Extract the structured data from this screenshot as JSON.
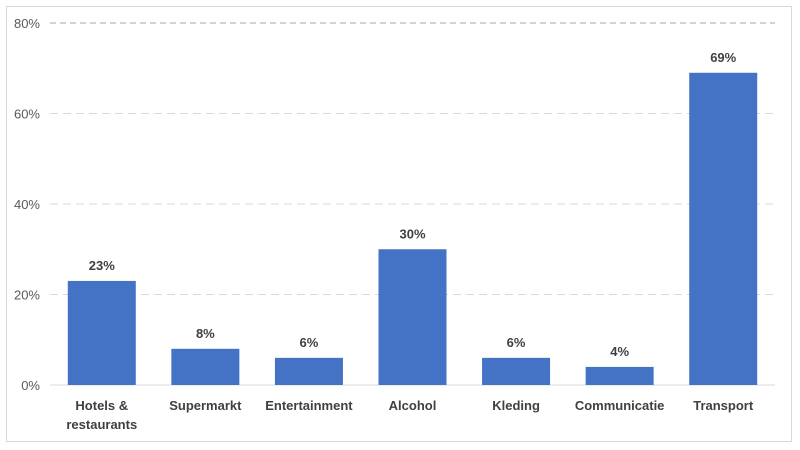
{
  "chart_data": {
    "type": "bar",
    "categories": [
      [
        "Hotels &",
        "restaurants"
      ],
      [
        "Supermarkt"
      ],
      [
        "Entertainment"
      ],
      [
        "Alcohol"
      ],
      [
        "Kleding"
      ],
      [
        "Communicatie"
      ],
      [
        "Transport"
      ]
    ],
    "values": [
      23,
      8,
      6,
      30,
      6,
      4,
      69
    ],
    "data_labels": [
      "23%",
      "8%",
      "6%",
      "30%",
      "6%",
      "4%",
      "69%"
    ],
    "ylim": [
      0,
      80
    ],
    "y_ticks": [
      0,
      20,
      40,
      60,
      80
    ],
    "y_tick_labels": [
      "0%",
      "20%",
      "40%",
      "60%",
      "80%"
    ],
    "grid": true,
    "legend": "none",
    "bar_color": "#4472c4",
    "grid_color": "#d9d9d9"
  }
}
